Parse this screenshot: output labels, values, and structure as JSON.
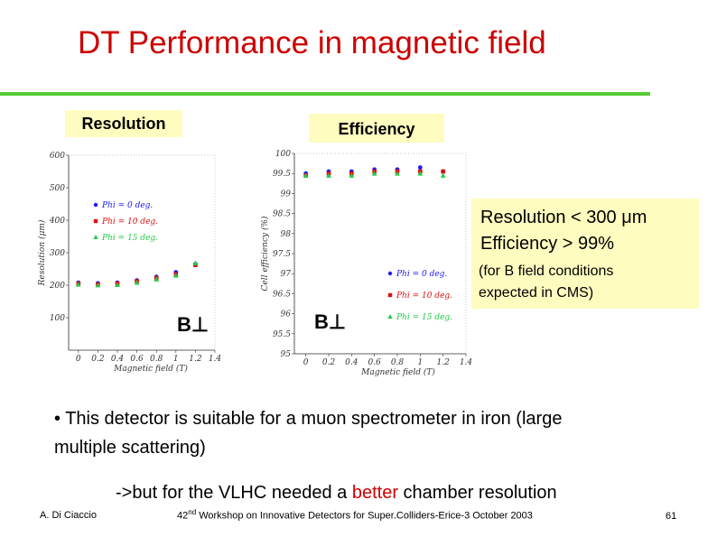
{
  "title": "DT Performance in magnetic field",
  "labels": {
    "resolution": "Resolution",
    "efficiency": "Efficiency"
  },
  "summary": {
    "line1": "Resolution < 300 μm",
    "line2": "Efficiency > 99%",
    "note1": "(for B field conditions",
    "note2": "expected in CMS)"
  },
  "b_label": "B⊥",
  "bullet1": "• This detector is suitable for a muon spectrometer in iron (large",
  "bullet2": "multiple scattering)",
  "vlhc": {
    "before": "->but  for the VLHC needed  a ",
    "better": "better",
    "after": " chamber resolution"
  },
  "footer": {
    "author": "A. Di Ciaccio",
    "ordinal_num": "42",
    "ordinal_suffix": "nd",
    "workshop": " Workshop on Innovative Detectors for Super.Colliders-Erice-3 October 2003",
    "page": "61"
  },
  "colors": {
    "title": "#cc0000",
    "rule": "#55cc33",
    "box": "#fffcc0",
    "blue": "#1a1aff",
    "red": "#e01010",
    "green": "#22cc44"
  },
  "chart_data": [
    {
      "type": "scatter",
      "title": "",
      "xlabel": "Magnetic field (T)",
      "ylabel": "Resolution (μm)",
      "xlim": [
        -0.1,
        1.4
      ],
      "ylim": [
        0,
        600
      ],
      "xticks": [
        "0",
        "0.2",
        "0.4",
        "0.6",
        "0.8",
        "1",
        "1.2",
        "1.4"
      ],
      "yticks": [
        "100",
        "200",
        "300",
        "400",
        "500",
        "600"
      ],
      "series": [
        {
          "name": "Phi = 0 deg.",
          "color": "#1a1aff",
          "x": [
            0,
            0.2,
            0.4,
            0.6,
            0.8,
            1,
            1.2
          ],
          "values": [
            208,
            206,
            208,
            215,
            226,
            240,
            265
          ]
        },
        {
          "name": "Phi = 10 deg.",
          "color": "#e01010",
          "x": [
            0,
            0.2,
            0.4,
            0.6,
            0.8,
            1,
            1.2
          ],
          "values": [
            205,
            202,
            205,
            212,
            222,
            233,
            262
          ]
        },
        {
          "name": "Phi = 15 deg.",
          "color": "#22cc44",
          "x": [
            0,
            0.2,
            0.4,
            0.6,
            0.8,
            1,
            1.2
          ],
          "values": [
            202,
            200,
            201,
            208,
            218,
            230,
            268
          ]
        }
      ]
    },
    {
      "type": "scatter",
      "title": "",
      "xlabel": "Magnetic field (T)",
      "ylabel": "Cell efficiency (%)",
      "xlim": [
        -0.1,
        1.4
      ],
      "ylim": [
        95,
        100
      ],
      "xticks": [
        "0",
        "0.2",
        "0.4",
        "0.6",
        "0.8",
        "1",
        "1.2",
        "1.4"
      ],
      "yticks": [
        "95",
        "95.5",
        "96",
        "96.5",
        "97",
        "97.5",
        "98",
        "98.5",
        "99",
        "99.5",
        "100"
      ],
      "series": [
        {
          "name": "Phi = 0 deg.",
          "color": "#1a1aff",
          "x": [
            0,
            0.2,
            0.4,
            0.6,
            0.8,
            1,
            1.2
          ],
          "values": [
            99.5,
            99.55,
            99.55,
            99.6,
            99.6,
            99.65,
            99.55
          ]
        },
        {
          "name": "Phi = 10 deg.",
          "color": "#e01010",
          "x": [
            0,
            0.2,
            0.4,
            0.6,
            0.8,
            1,
            1.2
          ],
          "values": [
            99.45,
            99.5,
            99.5,
            99.55,
            99.55,
            99.55,
            99.55
          ]
        },
        {
          "name": "Phi = 15 deg.",
          "color": "#22cc44",
          "x": [
            0,
            0.2,
            0.4,
            0.6,
            0.8,
            1,
            1.2
          ],
          "values": [
            99.45,
            99.45,
            99.45,
            99.5,
            99.5,
            99.5,
            99.45
          ]
        }
      ]
    }
  ]
}
